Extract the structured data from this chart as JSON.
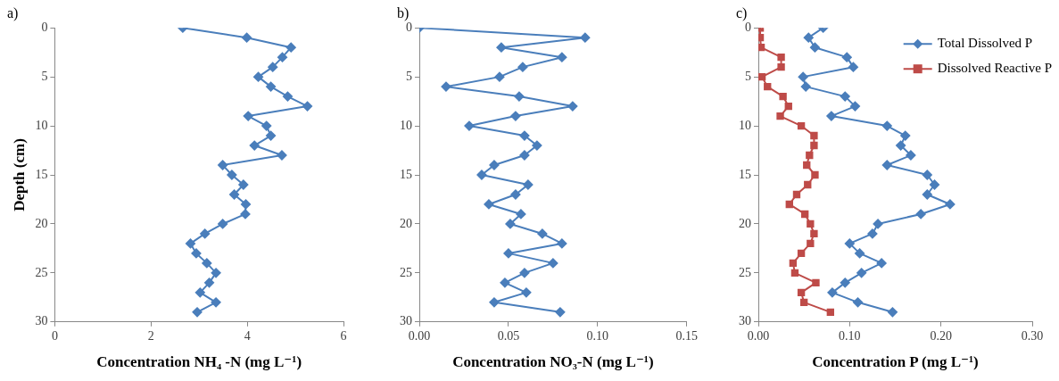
{
  "chart_data": [
    {
      "type": "line",
      "title": "a)",
      "xlabel": "Concentration NH₄ -N (mg L⁻¹)",
      "ylabel": "Depth (cm)",
      "xlim": [
        0,
        6
      ],
      "xticks": [
        0,
        2,
        4,
        6
      ],
      "ylim": [
        30,
        0
      ],
      "yticks": [
        0,
        5,
        10,
        15,
        20,
        25,
        30
      ],
      "grid": false,
      "legend": false,
      "marker": "diamond",
      "series": [
        {
          "color": "#4a7ebb",
          "x": [
            2.66,
            3.99,
            4.91,
            4.73,
            4.53,
            4.23,
            4.49,
            4.84,
            5.25,
            4.02,
            4.4,
            4.49,
            4.15,
            4.72,
            3.49,
            3.68,
            3.92,
            3.73,
            3.97,
            3.96,
            3.49,
            3.12,
            2.82,
            2.94,
            3.16,
            3.35,
            3.21,
            3.02,
            3.35,
            2.96
          ],
          "values": [
            0,
            1,
            2,
            3,
            4,
            5,
            6,
            7,
            8,
            9,
            10,
            11,
            12,
            13,
            14,
            15,
            16,
            17,
            18,
            19,
            20,
            21,
            22,
            23,
            24,
            25,
            26,
            27,
            28,
            29
          ]
        }
      ]
    },
    {
      "type": "line",
      "title": "b)",
      "xlabel": "Concentration NO₃-N (mg L⁻¹)",
      "xlim": [
        0,
        0.15
      ],
      "xticks": [
        {
          "value": 0,
          "label": "0.00"
        },
        {
          "value": 0.05,
          "label": "0.05"
        },
        {
          "value": 0.1,
          "label": "0.10"
        },
        {
          "value": 0.15,
          "label": "0.15"
        }
      ],
      "ylim": [
        30,
        0
      ],
      "yticks": [
        0,
        5,
        10,
        15,
        20,
        25,
        30
      ],
      "grid": false,
      "legend": false,
      "marker": "diamond",
      "series": [
        {
          "color": "#4a7ebb",
          "x": [
            0.0,
            0.093,
            0.046,
            0.08,
            0.058,
            0.045,
            0.015,
            0.056,
            0.086,
            0.054,
            0.028,
            0.059,
            0.066,
            0.059,
            0.042,
            0.035,
            0.061,
            0.054,
            0.039,
            0.057,
            0.051,
            0.069,
            0.08,
            0.05,
            0.075,
            0.059,
            0.048,
            0.06,
            0.042,
            0.079
          ],
          "values": [
            0,
            1,
            2,
            3,
            4,
            5,
            6,
            7,
            8,
            9,
            10,
            11,
            12,
            13,
            14,
            15,
            16,
            17,
            18,
            19,
            20,
            21,
            22,
            23,
            24,
            25,
            26,
            27,
            28,
            29
          ]
        }
      ]
    },
    {
      "type": "line",
      "title": "c)",
      "xlabel": "Concentration P (mg L⁻¹)",
      "xlim": [
        0,
        0.3
      ],
      "xticks": [
        {
          "value": 0,
          "label": "0.00"
        },
        {
          "value": 0.1,
          "label": "0.10"
        },
        {
          "value": 0.2,
          "label": "0.20"
        },
        {
          "value": 0.3,
          "label": "0.30"
        }
      ],
      "ylim": [
        30,
        0
      ],
      "yticks": [
        0,
        5,
        10,
        15,
        20,
        25,
        30
      ],
      "grid": false,
      "legend": "top right",
      "series": [
        {
          "name": "Total Dissolved P",
          "color": "#4a7ebb",
          "marker": "diamond",
          "x": [
            0.071,
            0.055,
            0.062,
            0.097,
            0.104,
            0.049,
            0.052,
            0.095,
            0.106,
            0.08,
            0.141,
            0.161,
            0.156,
            0.167,
            0.141,
            0.185,
            0.193,
            0.185,
            0.21,
            0.178,
            0.131,
            0.125,
            0.1,
            0.111,
            0.135,
            0.113,
            0.095,
            0.081,
            0.109,
            0.147
          ],
          "values": [
            0,
            1,
            2,
            3,
            4,
            5,
            6,
            7,
            8,
            9,
            10,
            11,
            12,
            13,
            14,
            15,
            16,
            17,
            18,
            19,
            20,
            21,
            22,
            23,
            24,
            25,
            26,
            27,
            28,
            29
          ]
        },
        {
          "name": "Dissolved Reactive P",
          "color": "#be4b48",
          "marker": "square",
          "x": [
            0.002,
            0.002,
            0.003,
            0.025,
            0.025,
            0.004,
            0.01,
            0.027,
            0.033,
            0.024,
            0.047,
            0.061,
            0.061,
            0.056,
            0.053,
            0.062,
            0.054,
            0.042,
            0.034,
            0.051,
            0.057,
            0.061,
            0.057,
            0.047,
            0.038,
            0.04,
            0.063,
            0.047,
            0.05,
            0.079
          ],
          "values": [
            0,
            1,
            2,
            3,
            4,
            5,
            6,
            7,
            8,
            9,
            10,
            11,
            12,
            13,
            14,
            15,
            16,
            17,
            18,
            19,
            20,
            21,
            22,
            23,
            24,
            25,
            26,
            27,
            28,
            29
          ]
        }
      ]
    }
  ]
}
